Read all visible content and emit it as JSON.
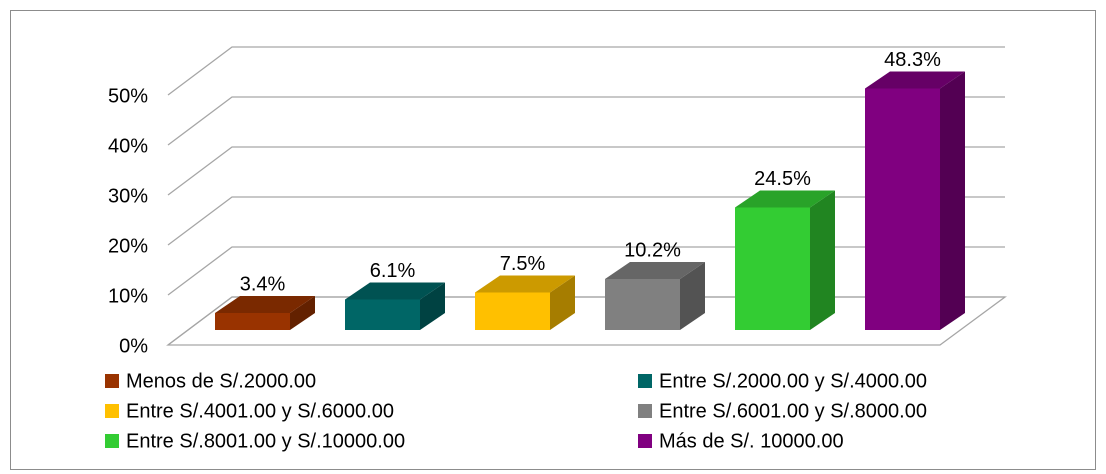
{
  "chart_data": {
    "type": "bar",
    "categories": [
      "Menos de S/.2000.00",
      "Entre S/.2000.00 y S/.4000.00",
      "Entre S/.4001.00 y S/.6000.00",
      "Entre S/.6001.00 y S/.8000.00",
      "Entre S/.8001.00 y S/.10000.00",
      "Más de S/. 10000.00"
    ],
    "values": [
      3.4,
      6.1,
      7.5,
      10.2,
      24.5,
      48.3
    ],
    "value_labels": [
      "3.4%",
      "6.1%",
      "7.5%",
      "10.2%",
      "24.5%",
      "48.3%"
    ],
    "colors": [
      "#993300",
      "#006666",
      "#ffc000",
      "#808080",
      "#33cc33",
      "#800080"
    ],
    "ylim": [
      0,
      50
    ],
    "yticks": [
      {
        "value": 0,
        "label": "0%"
      },
      {
        "value": 10,
        "label": "10%"
      },
      {
        "value": 20,
        "label": "20%"
      },
      {
        "value": 30,
        "label": "30%"
      },
      {
        "value": 40,
        "label": "40%"
      },
      {
        "value": 50,
        "label": "50%"
      }
    ],
    "grid": true,
    "legend": "bottom"
  }
}
